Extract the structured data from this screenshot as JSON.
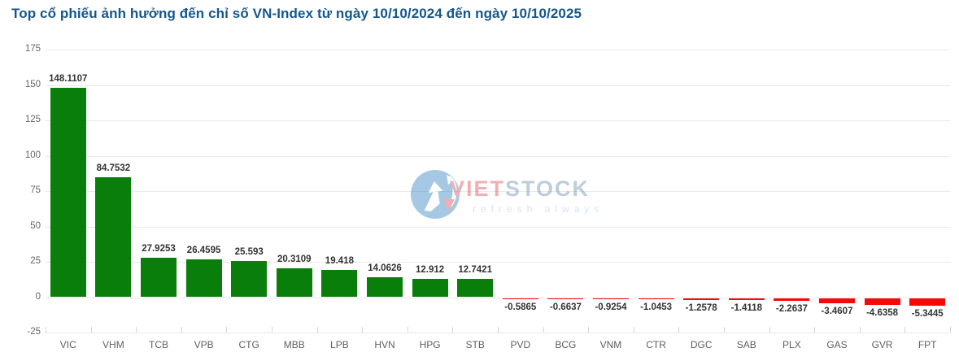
{
  "title": "Top cổ phiếu ảnh hưởng đến chỉ số VN-Index từ ngày 10/10/2024 đến ngày 10/10/2025",
  "watermark": {
    "brand_first": "VIET",
    "brand_second": "STOCK",
    "tagline": "refresh always"
  },
  "colors": {
    "title": "#14568c",
    "positive_bar": "#0a7e0a",
    "negative_bar": "#f60909",
    "gridline": "#e9e9e9",
    "axis": "#d4d4d4",
    "y_label": "#666666",
    "x_label": "#606060",
    "value_label": "#333333"
  },
  "chart_data": {
    "type": "bar",
    "title": "Top cổ phiếu ảnh hưởng đến chỉ số VN-Index từ ngày 10/10/2024 đến ngày 10/10/2025",
    "xlabel": "",
    "ylabel": "",
    "categories": [
      "VIC",
      "VHM",
      "TCB",
      "VPB",
      "CTG",
      "MBB",
      "LPB",
      "HVN",
      "HPG",
      "STB",
      "PVD",
      "BCG",
      "VNM",
      "CTR",
      "DGC",
      "SAB",
      "PLX",
      "GAS",
      "GVR",
      "FPT"
    ],
    "values": [
      148.1107,
      84.7532,
      27.9253,
      26.4595,
      25.593,
      20.3109,
      19.418,
      14.0626,
      12.912,
      12.7421,
      -0.5865,
      -0.6637,
      -0.9254,
      -1.0453,
      -1.2578,
      -1.4118,
      -2.2637,
      -3.4607,
      -4.6358,
      -5.3445
    ],
    "value_labels": [
      "148.1107",
      "84.7532",
      "27.9253",
      "26.4595",
      "25.593",
      "20.3109",
      "19.418",
      "14.0626",
      "12.912",
      "12.7421",
      "-0.5865",
      "-0.6637",
      "-0.9254",
      "-1.0453",
      "-1.2578",
      "-1.4118",
      "-2.2637",
      "-3.4607",
      "-4.6358",
      "-5.3445"
    ],
    "ylim": [
      -25,
      175
    ],
    "yticks": [
      175,
      150,
      125,
      100,
      75,
      50,
      25,
      0,
      -25
    ],
    "grid": "horizontal",
    "legend": "none"
  }
}
